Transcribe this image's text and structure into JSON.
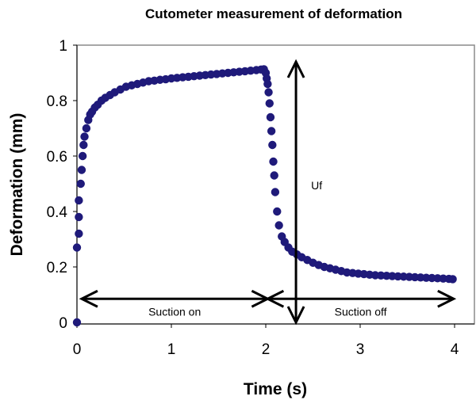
{
  "chart_data": {
    "type": "scatter",
    "title": "Cutometer measurement of deformation",
    "xlabel": "Time (s)",
    "ylabel": "Deformation (mm)",
    "xlim": [
      0,
      4
    ],
    "ylim": [
      0,
      1
    ],
    "xticks": [
      0,
      1,
      2,
      3,
      4
    ],
    "yticks": [
      0,
      0.2,
      0.4,
      0.6,
      0.8,
      1
    ],
    "xtick_labels": [
      "0",
      "1",
      "2",
      "3",
      "4"
    ],
    "ytick_labels": [
      "0",
      "0.2",
      "0.4",
      "0.6",
      "0.8",
      "1"
    ],
    "grid": false,
    "marker_color": "#1f1a7a",
    "series": [
      {
        "x": [
          0.0,
          0.0,
          0.02,
          0.02,
          0.02,
          0.04,
          0.05,
          0.06,
          0.07,
          0.08,
          0.1,
          0.12,
          0.14,
          0.16,
          0.19,
          0.22,
          0.26,
          0.3,
          0.35,
          0.4,
          0.46,
          0.52,
          0.58,
          0.64,
          0.7,
          0.76,
          0.82,
          0.88,
          0.94,
          1.0,
          1.06,
          1.12,
          1.18,
          1.24,
          1.3,
          1.36,
          1.42,
          1.48,
          1.54,
          1.6,
          1.66,
          1.72,
          1.78,
          1.84,
          1.9,
          1.95,
          1.98,
          2.0,
          2.01,
          2.02,
          2.03,
          2.04,
          2.05,
          2.06,
          2.07,
          2.08,
          2.09,
          2.1,
          2.12,
          2.14,
          2.17,
          2.2,
          2.24,
          2.28,
          2.33,
          2.38,
          2.44,
          2.5,
          2.56,
          2.62,
          2.68,
          2.74,
          2.8,
          2.86,
          2.92,
          2.98,
          3.04,
          3.1,
          3.16,
          3.22,
          3.28,
          3.34,
          3.4,
          3.46,
          3.52,
          3.58,
          3.64,
          3.7,
          3.76,
          3.82,
          3.88,
          3.94,
          3.98
        ],
        "y": [
          0.0,
          0.27,
          0.32,
          0.38,
          0.44,
          0.5,
          0.55,
          0.6,
          0.64,
          0.67,
          0.7,
          0.73,
          0.75,
          0.76,
          0.775,
          0.785,
          0.8,
          0.81,
          0.82,
          0.83,
          0.84,
          0.85,
          0.855,
          0.86,
          0.865,
          0.87,
          0.872,
          0.875,
          0.877,
          0.88,
          0.882,
          0.884,
          0.886,
          0.888,
          0.89,
          0.892,
          0.894,
          0.896,
          0.898,
          0.9,
          0.902,
          0.904,
          0.906,
          0.908,
          0.91,
          0.912,
          0.913,
          0.9,
          0.88,
          0.86,
          0.83,
          0.79,
          0.74,
          0.69,
          0.64,
          0.58,
          0.53,
          0.47,
          0.4,
          0.35,
          0.31,
          0.29,
          0.27,
          0.255,
          0.245,
          0.235,
          0.225,
          0.215,
          0.207,
          0.2,
          0.195,
          0.19,
          0.185,
          0.18,
          0.178,
          0.176,
          0.174,
          0.172,
          0.17,
          0.169,
          0.168,
          0.167,
          0.166,
          0.165,
          0.164,
          0.163,
          0.162,
          0.161,
          0.16,
          0.159,
          0.158,
          0.157,
          0.156
        ]
      }
    ],
    "annotations": [
      {
        "text": "Suction on",
        "type": "double-arrow-horizontal",
        "x_start": 0.05,
        "x_end": 2.02,
        "y": 0.085
      },
      {
        "text": "Suction off",
        "type": "double-arrow-horizontal",
        "x_start": 2.02,
        "x_end": 3.99,
        "y": 0.085
      },
      {
        "text": "Uf",
        "type": "double-arrow-vertical",
        "x": 2.32,
        "y_start": 0.0,
        "y_end": 0.94
      }
    ]
  }
}
